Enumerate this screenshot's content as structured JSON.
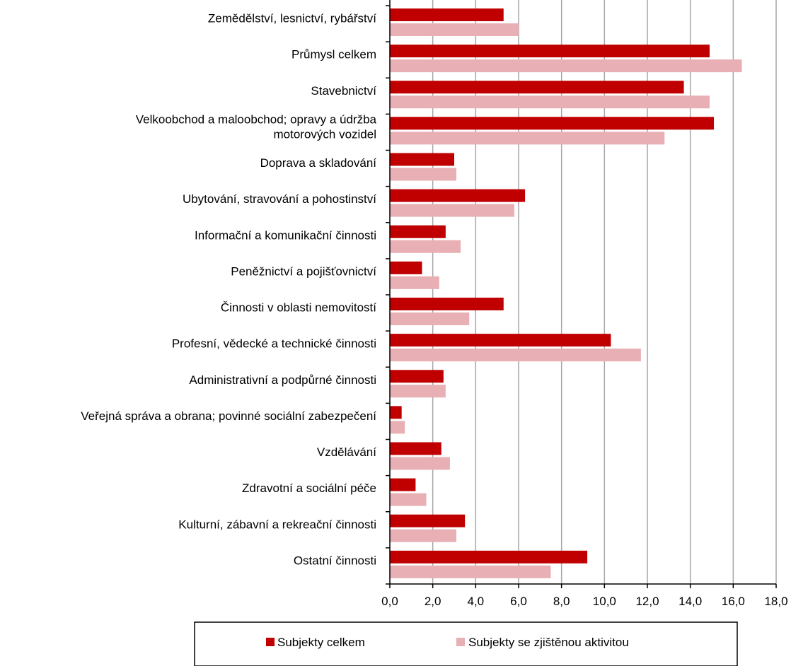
{
  "chart_data": {
    "type": "bar",
    "orientation": "horizontal",
    "categories": [
      [
        "Zemědělství, lesnictví, rybářství"
      ],
      [
        "Průmysl celkem"
      ],
      [
        "Stavebnictví"
      ],
      [
        "Velkoobchod a maloobchod; opravy a údržba",
        "motorových vozidel"
      ],
      [
        "Doprava a skladování"
      ],
      [
        "Ubytování, stravování a pohostinství"
      ],
      [
        "Informační a komunikační činnosti"
      ],
      [
        "Peněžnictví a pojišťovnictví"
      ],
      [
        "Činnosti v oblasti nemovitostí"
      ],
      [
        "Profesní, vědecké a technické činnosti"
      ],
      [
        "Administrativní a podpůrné činnosti"
      ],
      [
        "Veřejná správa a obrana; povinné sociální zabezpečení"
      ],
      [
        "Vzdělávání"
      ],
      [
        "Zdravotní a sociální péče"
      ],
      [
        "Kulturní, zábavní a rekreační činnosti"
      ],
      [
        "Ostatní činnosti"
      ]
    ],
    "series": [
      {
        "name": "Subjekty celkem",
        "color": "#c00000",
        "values": [
          5.3,
          14.9,
          13.7,
          15.1,
          3.0,
          6.3,
          2.6,
          1.5,
          5.3,
          10.3,
          2.5,
          0.55,
          2.4,
          1.2,
          3.5,
          9.2
        ]
      },
      {
        "name": "Subjekty se zjištěnou aktivitou",
        "color": "#e8b0b4",
        "values": [
          6.0,
          16.4,
          14.9,
          12.8,
          3.1,
          5.8,
          3.3,
          2.3,
          3.7,
          11.7,
          2.6,
          0.7,
          2.8,
          1.7,
          3.1,
          7.5
        ]
      }
    ],
    "xlim": [
      0,
      18
    ],
    "x_ticks": [
      "0,0",
      "2,0",
      "4,0",
      "6,0",
      "8,0",
      "10,0",
      "12,0",
      "14,0",
      "16,0",
      "18,0"
    ],
    "xlabel": "%",
    "grid": "vertical",
    "legend_position": "bottom"
  }
}
